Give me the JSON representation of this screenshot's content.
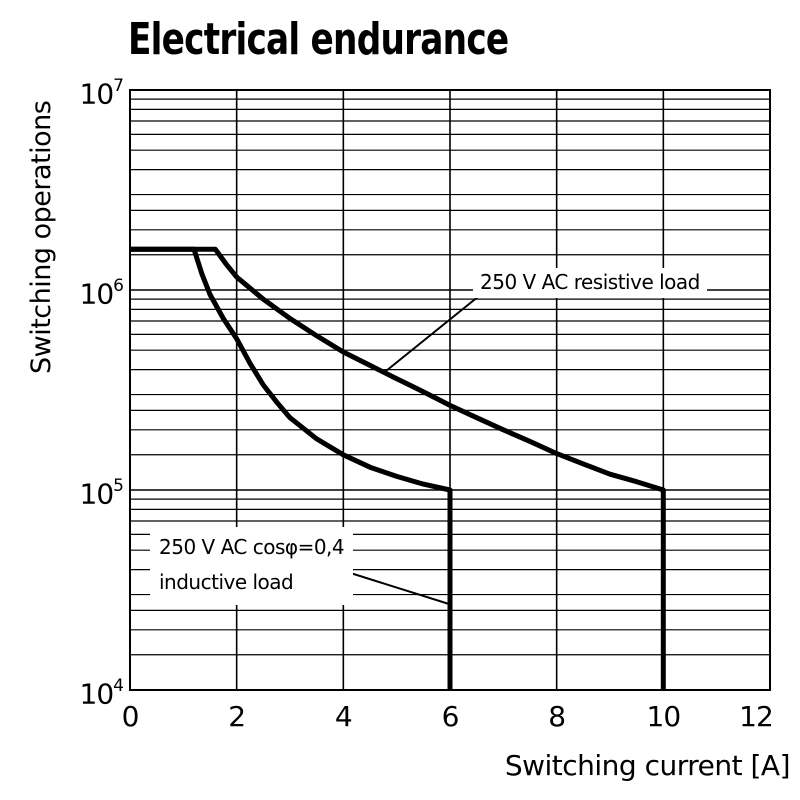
{
  "page": {
    "background": "#ffffff"
  },
  "chart_data": {
    "type": "line",
    "title": "Electrical endurance",
    "xlabel": "Switching current [A]",
    "ylabel": "Switching operations",
    "grid": true,
    "legend_position": "none",
    "colors": {
      "axis": "#000000",
      "grid": "#000000",
      "curves": "#000000",
      "background": "#ffffff"
    },
    "x_axis": {
      "min": 0,
      "max": 12,
      "tick_step": 2,
      "tick_labels": [
        "0",
        "2",
        "4",
        "6",
        "8",
        "10",
        "12"
      ]
    },
    "y_axis": {
      "scale": "log",
      "min": 10000,
      "max": 10000000,
      "tick_labels": [
        {
          "base": "10",
          "exp": "7"
        },
        {
          "base": "10",
          "exp": "6"
        },
        {
          "base": "10",
          "exp": "5"
        },
        {
          "base": "10",
          "exp": "4"
        }
      ],
      "minor_multiples": [
        1.5,
        2,
        2.5,
        3,
        4,
        5,
        6,
        7,
        8,
        9
      ]
    },
    "series": [
      {
        "name": "250 V AC resistive load",
        "points": [
          [
            0,
            1600000
          ],
          [
            1.6,
            1600000
          ],
          [
            1.8,
            1350000
          ],
          [
            2,
            1160000
          ],
          [
            2.5,
            900000
          ],
          [
            3,
            720000
          ],
          [
            3.5,
            590000
          ],
          [
            4,
            490000
          ],
          [
            4.5,
            420000
          ],
          [
            5,
            360000
          ],
          [
            5.5,
            310000
          ],
          [
            6,
            265000
          ],
          [
            6.5,
            230000
          ],
          [
            7,
            200000
          ],
          [
            7.5,
            175000
          ],
          [
            8,
            152000
          ],
          [
            8.5,
            135000
          ],
          [
            9,
            120000
          ],
          [
            9.5,
            110000
          ],
          [
            10,
            100000
          ],
          [
            10,
            10000
          ]
        ]
      },
      {
        "name": "250 V AC cosφ=0,4 inductive load",
        "points": [
          [
            0,
            1600000
          ],
          [
            1.2,
            1600000
          ],
          [
            1.35,
            1200000
          ],
          [
            1.5,
            950000
          ],
          [
            1.75,
            720000
          ],
          [
            2,
            570000
          ],
          [
            2.25,
            430000
          ],
          [
            2.5,
            335000
          ],
          [
            2.75,
            275000
          ],
          [
            3,
            230000
          ],
          [
            3.5,
            180000
          ],
          [
            4,
            150000
          ],
          [
            4.5,
            130000
          ],
          [
            5,
            117000
          ],
          [
            5.5,
            107000
          ],
          [
            6,
            100000
          ],
          [
            6,
            10000
          ]
        ]
      }
    ],
    "annotations": [
      {
        "lines": [
          "250 V AC resistive load"
        ]
      },
      {
        "lines": [
          "250 V AC cosφ=0,4",
          "inductive load"
        ]
      }
    ]
  }
}
